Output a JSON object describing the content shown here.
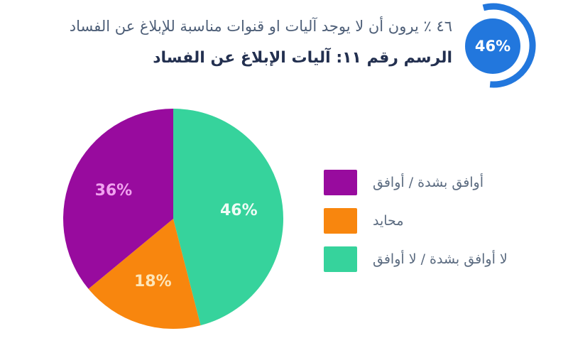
{
  "header": {
    "headline": "٤٦ ٪ يرون أن لا يوجد آليات او قنوات مناسبة للإبلاغ عن الفساد",
    "figure_title": "الرسم رقم ١١: آليات الإبلاغ عن الفساد",
    "badge_value": "46%"
  },
  "colors": {
    "badge_blue": "#2277dd",
    "headline_text": "#4e5f78",
    "figure_title_text": "#233050",
    "legend_text": "#5b6b80",
    "background": "#ffffff"
  },
  "chart_data": {
    "type": "pie",
    "title": "الرسم رقم ١١: آليات الإبلاغ عن الفساد",
    "start_angle_deg": 0,
    "direction": "clockwise",
    "slices": [
      {
        "label": "لا أوافق بشدة / لا أوافق",
        "value": 46,
        "display": "46%",
        "color": "#36d39c",
        "label_color": "#eefcf5"
      },
      {
        "label": "محايد",
        "value": 18,
        "display": "18%",
        "color": "#f8860e",
        "label_color": "#fde5b8"
      },
      {
        "label": "أوافق بشدة / أوافق",
        "value": 36,
        "display": "36%",
        "color": "#980b9e",
        "label_color": "#f0a2ef"
      }
    ],
    "legend_position": "right",
    "legend": [
      {
        "label": "أوافق بشدة / أوافق",
        "color": "#980b9e"
      },
      {
        "label": "محايد",
        "color": "#f8860e"
      },
      {
        "label": "لا أوافق بشدة / لا أوافق",
        "color": "#36d39c"
      }
    ]
  }
}
